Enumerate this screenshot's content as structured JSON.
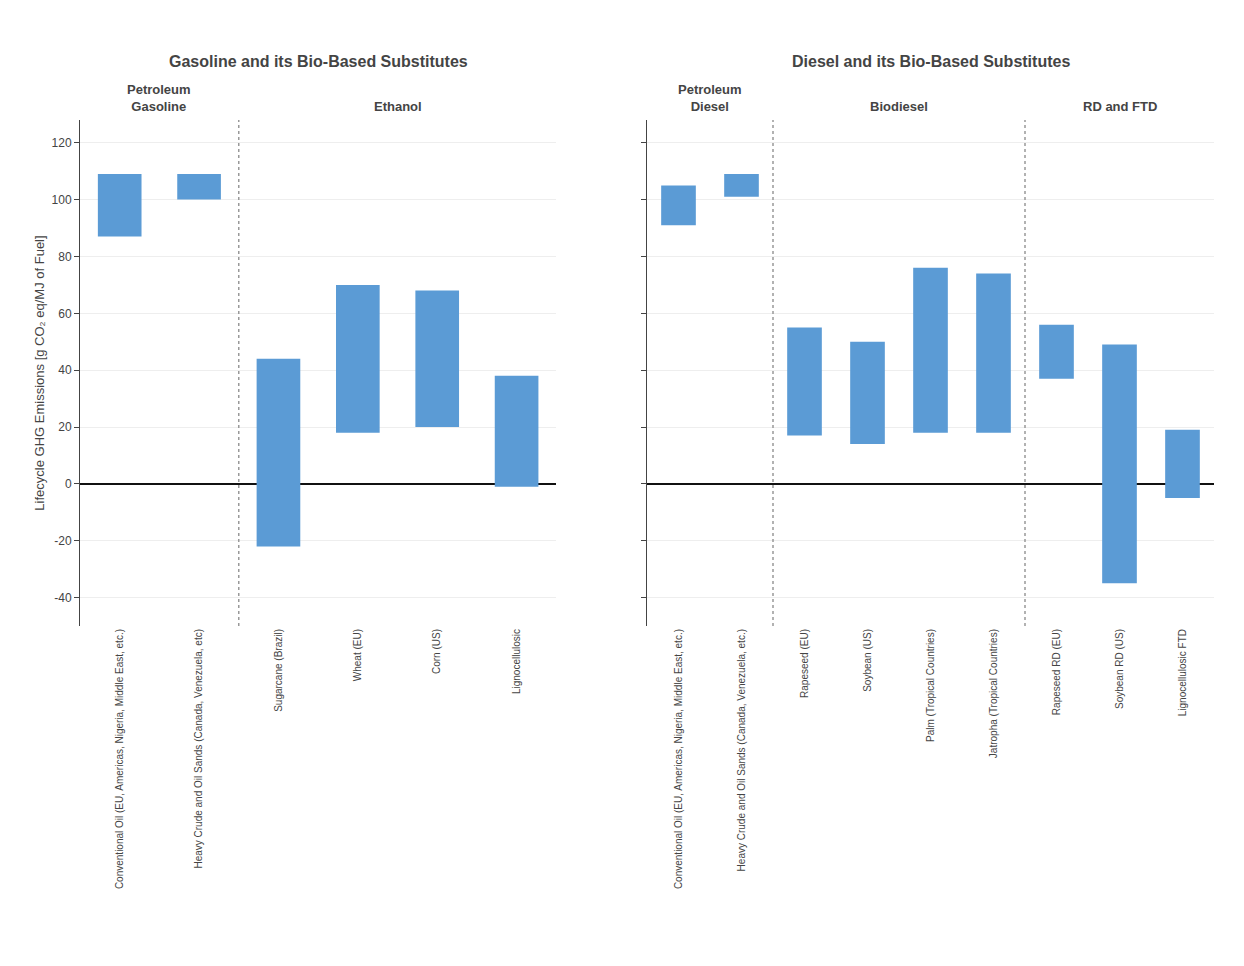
{
  "chart_data": [
    {
      "type": "bar",
      "title": "Gasoline and its Bio-Based Substitutes",
      "ylabel": "Lifecycle GHG Emissions [g CO₂ eq/MJ of Fuel]",
      "categories": [
        "Conventional Oil (EU, Americas, Nigeria, Middle East, etc.)",
        "Heavy Crude and Oil Sands (Canada, Venezuela, etc)",
        "Sugarcane (Brazil)",
        "Wheat (EU)",
        "Corn (US)",
        "Lignocellulosic"
      ],
      "values": [
        [
          87,
          109
        ],
        [
          100,
          109
        ],
        [
          -22,
          44
        ],
        [
          18,
          70
        ],
        [
          20,
          68
        ],
        [
          -1,
          38
        ]
      ],
      "color": "#5b9bd5",
      "ylim": [
        -50,
        128
      ],
      "yticks": [
        -40,
        -20,
        0,
        20,
        40,
        60,
        80,
        100,
        120
      ],
      "grid": true,
      "annotations": [
        {
          "text": "Petroleum\nGasoline",
          "from": "Conventional Oil (EU, Americas, Nigeria, Middle East, etc.)",
          "to": "Heavy Crude and Oil Sands (Canada, Venezuela, etc)"
        },
        {
          "text": "Ethanol",
          "from": "Sugarcane (Brazil)",
          "to": "Lignocellulosic"
        }
      ]
    },
    {
      "type": "bar",
      "title": "Diesel and its Bio-Based Substitutes",
      "categories": [
        "Conventional Oil (EU, Americas, Nigeria, Middle East, etc.)",
        "Heavy Crude and Oil Sands (Canada, Venezuela, etc.)",
        "Rapeseed (EU)",
        "Soybean (US)",
        "Palm (Tropical Countries)",
        "Jatropha (Tropical Countries)",
        "Rapeseed RD (EU)",
        "Soybean RD (US)",
        "Lignocellulosic FTD"
      ],
      "values": [
        [
          91,
          105
        ],
        [
          101,
          109
        ],
        [
          17,
          55
        ],
        [
          14,
          50
        ],
        [
          18,
          76
        ],
        [
          18,
          74
        ],
        [
          37,
          56
        ],
        [
          -35,
          49
        ],
        [
          -5,
          19
        ]
      ],
      "color": "#5b9bd5",
      "ylim": [
        -50,
        128
      ],
      "yticks": [
        -40,
        -20,
        0,
        20,
        40,
        60,
        80,
        100,
        120
      ],
      "grid": true,
      "tick_labels": "x",
      "annotations": [
        {
          "text": "Petroleum\nDiesel",
          "from": "Conventional Oil (EU, Americas, Nigeria, Middle East, etc.)",
          "to": "Heavy Crude and Oil Sands (Canada, Venezuela, etc.)"
        },
        {
          "text": "Biodiesel",
          "from": "Rapeseed (EU)",
          "to": "Jatropha (Tropical Countries)"
        },
        {
          "text": "RD and FTD",
          "from": "Rapeseed RD (EU)",
          "to": "Lignocellulosic FTD"
        }
      ]
    }
  ]
}
